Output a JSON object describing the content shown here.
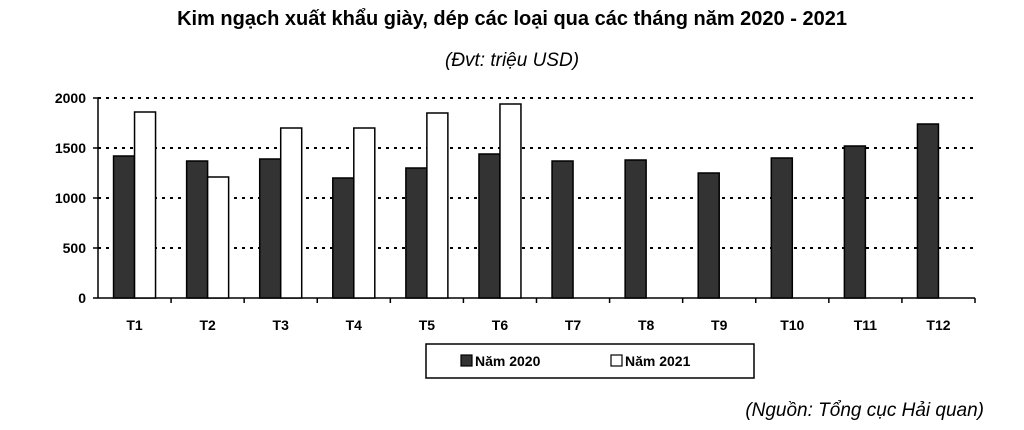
{
  "chart_data": {
    "type": "bar",
    "title": "Kim ngạch xuất khẩu giày, dép các loại qua các tháng năm 2020 - 2021",
    "subtitle": "(Đvt: triệu USD)",
    "source": "(Nguồn: Tổng cục Hải quan)",
    "categories": [
      "T1",
      "T2",
      "T3",
      "T4",
      "T5",
      "T6",
      "T7",
      "T8",
      "T9",
      "T10",
      "T11",
      "T12"
    ],
    "series": [
      {
        "name": "Năm 2020",
        "color": "#333333",
        "values": [
          1420,
          1370,
          1390,
          1200,
          1300,
          1440,
          1370,
          1380,
          1250,
          1400,
          1520,
          1740
        ]
      },
      {
        "name": "Năm 2021",
        "color": "#ffffff",
        "values": [
          1860,
          1210,
          1700,
          1700,
          1850,
          1940,
          null,
          null,
          null,
          null,
          null,
          null
        ]
      }
    ],
    "yticks": [
      0,
      500,
      1000,
      1500,
      2000
    ],
    "ylim": [
      0,
      2000
    ],
    "grid": true,
    "legend_position": "bottom"
  }
}
